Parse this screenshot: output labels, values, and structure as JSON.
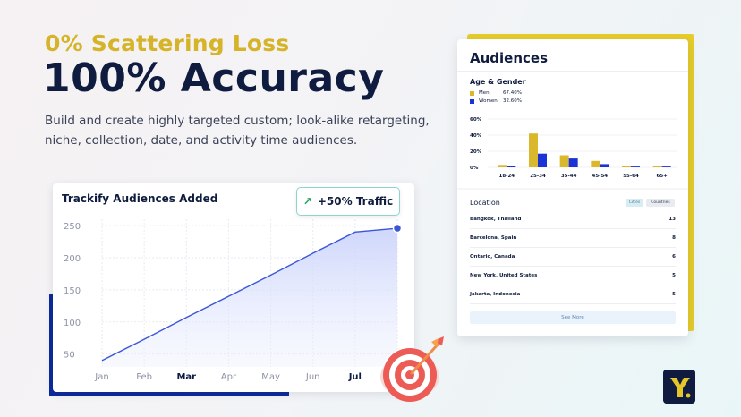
{
  "hero": {
    "headline": "0% Scattering Loss",
    "title": "100% Accuracy",
    "description": "Build and create highly targeted custom; look-alike retargeting, niche, collection, date, and activity time audiences."
  },
  "trackify": {
    "title": "Trackify Audiences Added",
    "callout": "+50% Traffic",
    "chart_data": {
      "type": "area",
      "title": "Trackify Audiences Added",
      "categories": [
        "Jan",
        "Feb",
        "Mar",
        "Apr",
        "May",
        "Jun",
        "Jul"
      ],
      "emphasized_categories": [
        "Mar",
        "Jul"
      ],
      "y_ticks": [
        50,
        100,
        150,
        200,
        250
      ],
      "ylim": [
        30,
        260
      ],
      "series": [
        {
          "values": [
            40,
            73,
            107,
            140,
            173,
            207,
            240
          ]
        }
      ],
      "end_point": {
        "x": "Aug",
        "y": 246
      },
      "grid": true,
      "color": "#3b57d6"
    }
  },
  "audiences": {
    "title": "Audiences",
    "age_gender": {
      "title": "Age & Gender",
      "legend": [
        {
          "label": "Men",
          "value": "67.40%",
          "color": "#d9b82c"
        },
        {
          "label": "Women",
          "value": "32.60%",
          "color": "#1a33d6"
        }
      ],
      "chart_data": {
        "type": "bar",
        "categories": [
          "18-24",
          "25-34",
          "35-44",
          "45-54",
          "55-64",
          "65+"
        ],
        "y_ticks": [
          "0%",
          "20%",
          "40%",
          "60%"
        ],
        "ylim": [
          0,
          60
        ],
        "series": [
          {
            "name": "Men",
            "values": [
              3,
              42,
              15,
              8,
              1.5,
              1.5
            ]
          },
          {
            "name": "Women",
            "values": [
              2,
              17,
              11,
              4,
              1,
              1
            ]
          }
        ],
        "grid": true
      }
    },
    "location": {
      "title": "Location",
      "tabs": [
        "Cities",
        "Countries"
      ],
      "rows": [
        {
          "name": "Bangkok, Thailand",
          "count": "13"
        },
        {
          "name": "Barcelona, Spain",
          "count": "8"
        },
        {
          "name": "Ontario, Canada",
          "count": "6"
        },
        {
          "name": "New York, United States",
          "count": "5"
        },
        {
          "name": "Jakarta, Indonesia",
          "count": "5"
        }
      ],
      "see_more": "See More"
    }
  },
  "colors": {
    "navy": "#0f1c3f",
    "gold": "#d6b42a",
    "blue": "#1a33d6",
    "teal": "#8fd3d0"
  }
}
